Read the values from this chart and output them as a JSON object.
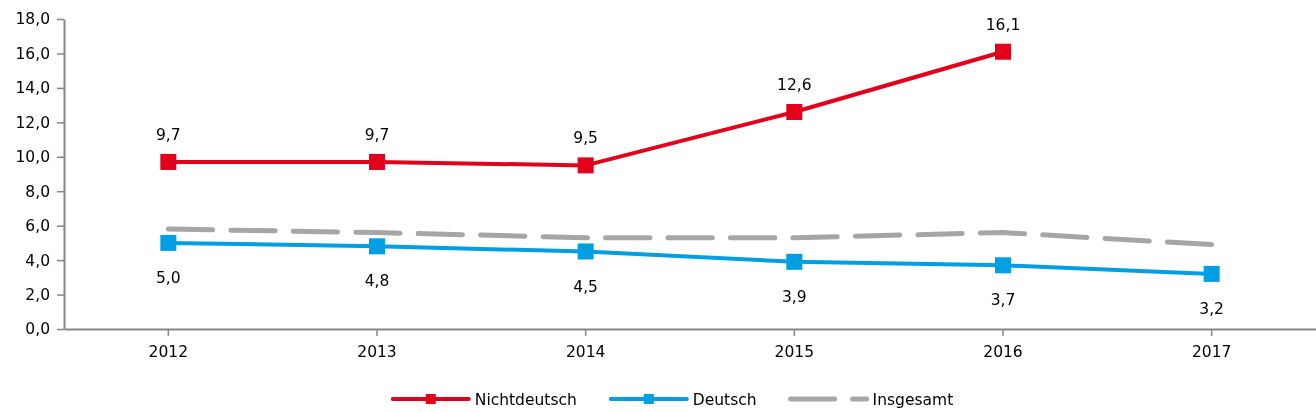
{
  "chart_data": {
    "type": "line",
    "categories": [
      "2012",
      "2013",
      "2014",
      "2015",
      "2016",
      "2017"
    ],
    "ylim": [
      0,
      18
    ],
    "yticks": [
      {
        "value": 0,
        "label": "0,0"
      },
      {
        "value": 2,
        "label": "2,0"
      },
      {
        "value": 4,
        "label": "4,0"
      },
      {
        "value": 6,
        "label": "6,0"
      },
      {
        "value": 8,
        "label": "8,0"
      },
      {
        "value": 10,
        "label": "10,0"
      },
      {
        "value": 12,
        "label": "12,0"
      },
      {
        "value": 14,
        "label": "14,0"
      },
      {
        "value": 16,
        "label": "16,0"
      },
      {
        "value": 18,
        "label": "18,0"
      }
    ],
    "legend": "bottom",
    "series": [
      {
        "name": "Nichtdeutsch",
        "color": "#e2001a",
        "marker": "square",
        "line_style": "solid",
        "values": [
          9.7,
          9.7,
          9.5,
          12.6,
          16.1,
          null
        ],
        "value_labels": [
          "9,7",
          "9,7",
          "9,5",
          "12,6",
          "16,1",
          null
        ]
      },
      {
        "name": "Deutsch",
        "color": "#009fe3",
        "marker": "square",
        "line_style": "solid",
        "values": [
          5.0,
          4.8,
          4.5,
          3.9,
          3.7,
          3.2
        ],
        "value_labels": [
          "5,0",
          "4,8",
          "4,5",
          "3,9",
          "3,7",
          "3,2"
        ]
      },
      {
        "name": "Insgesamt",
        "color": "#a6a6a6",
        "marker": "none",
        "line_style": "dashed",
        "values": [
          5.8,
          5.6,
          5.3,
          5.3,
          5.6,
          4.9
        ]
      }
    ]
  }
}
